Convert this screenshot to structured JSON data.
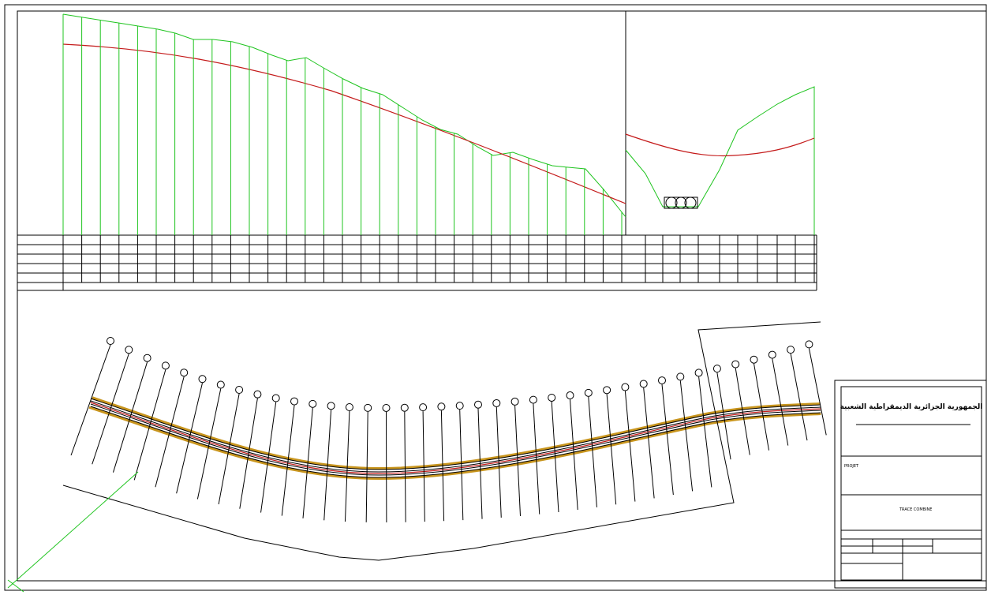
{
  "title_block": {
    "header": "الجمهورية الجزائرية الديمقراطية الشعبية",
    "project_label": "PROJET",
    "drawing_title": "TRACE COMBINE"
  }
}
